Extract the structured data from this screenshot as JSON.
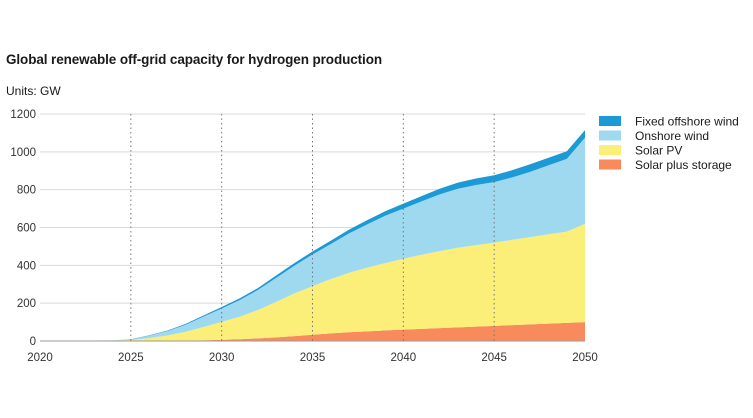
{
  "title": "Global renewable off-grid capacity for hydrogen production",
  "units": "Units: GW",
  "colors": {
    "fixed_offshore_wind": "#1b9ad6",
    "onshore_wind": "#9fd9f0",
    "solar_pv": "#fbef7a",
    "solar_plus_storage": "#f98a5c"
  },
  "chart_data": {
    "type": "area",
    "stacked": true,
    "x": [
      2020,
      2022,
      2024,
      2025,
      2026,
      2027,
      2028,
      2029,
      2030,
      2031,
      2032,
      2033,
      2034,
      2035,
      2036,
      2037,
      2038,
      2039,
      2040,
      2041,
      2042,
      2043,
      2044,
      2045,
      2046,
      2047,
      2048,
      2049,
      2050
    ],
    "series": [
      {
        "name": "Solar plus storage",
        "color": "#f98a5c",
        "values": [
          0,
          0,
          0,
          0,
          1,
          2,
          3,
          4,
          6,
          9,
          14,
          19,
          26,
          33,
          40,
          46,
          51,
          56,
          60,
          64,
          68,
          72,
          76,
          80,
          84,
          88,
          92,
          96,
          100
        ]
      },
      {
        "name": "Solar PV",
        "color": "#fbef7a",
        "values": [
          0,
          1,
          3,
          5,
          14,
          27,
          45,
          70,
          95,
          120,
          150,
          188,
          225,
          257,
          287,
          314,
          337,
          356,
          375,
          392,
          407,
          421,
          431,
          440,
          451,
          462,
          472,
          482,
          520
        ]
      },
      {
        "name": "Onshore wind",
        "color": "#9fd9f0",
        "values": [
          0,
          0,
          1,
          3,
          13,
          23,
          37,
          55,
          71,
          88,
          106,
          127,
          147,
          167,
          185,
          208,
          228,
          250,
          265,
          282,
          300,
          312,
          318,
          320,
          330,
          345,
          365,
          385,
          455
        ]
      },
      {
        "name": "Fixed offshore wind",
        "color": "#1b9ad6",
        "values": [
          0,
          0,
          0,
          1,
          2,
          3,
          5,
          6,
          8,
          9,
          10,
          12,
          14,
          16,
          18,
          20,
          22,
          24,
          26,
          28,
          30,
          32,
          34,
          36,
          38,
          40,
          40,
          40,
          40
        ]
      }
    ],
    "xlim": [
      2020,
      2050
    ],
    "ylim": [
      0,
      1200
    ],
    "x_ticks": [
      2020,
      2025,
      2030,
      2035,
      2040,
      2045,
      2050
    ],
    "y_ticks": [
      0,
      200,
      400,
      600,
      800,
      1000,
      1200
    ],
    "grid": "horizontal solid, vertical dotted",
    "legend": {
      "placement": "top-right",
      "entries": [
        "Fixed offshore wind",
        "Onshore wind",
        "Solar PV",
        "Solar plus storage"
      ]
    }
  }
}
